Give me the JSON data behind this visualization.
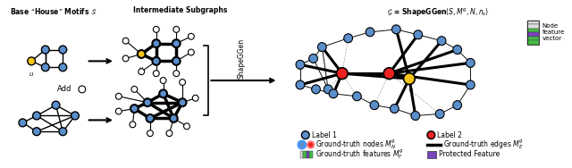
{
  "bg_color": "#ffffff",
  "blue_node_color": "#5b8fcc",
  "red_node_color": "#ee2222",
  "yellow_node_color": "#f5c518",
  "open_node_color": "#ffffff",
  "edge_color": "#111111",
  "thick_edge_color": "#000000",
  "dashed_edge_color": "#aaaaaa",
  "green_feat_color": "#44bb44",
  "purple_feat_color": "#7744bb",
  "gray_feat_color": "#dddddd",
  "section1_title": "Base “House” Motifs $\\mathcal{S}$",
  "section2_title": "Intermediate Subgraphs",
  "section3_title": "$\\mathcal{G}$ = ShapeGGen$(S, M^g, N, n_s)$",
  "shapeggen_label": "ShapeGGen",
  "legend_label1": "Label 1",
  "legend_label2": "Label 2",
  "legend_gt_nodes": "Ground-truth nodes $M_N^g$",
  "legend_gt_edges": "Ground-truth edges $M_E^g$",
  "legend_gt_features": "Ground-truth features $M_F^g$",
  "legend_protected": "Protected Feature",
  "legend_node_feat": "Node\nfeature\nvector"
}
